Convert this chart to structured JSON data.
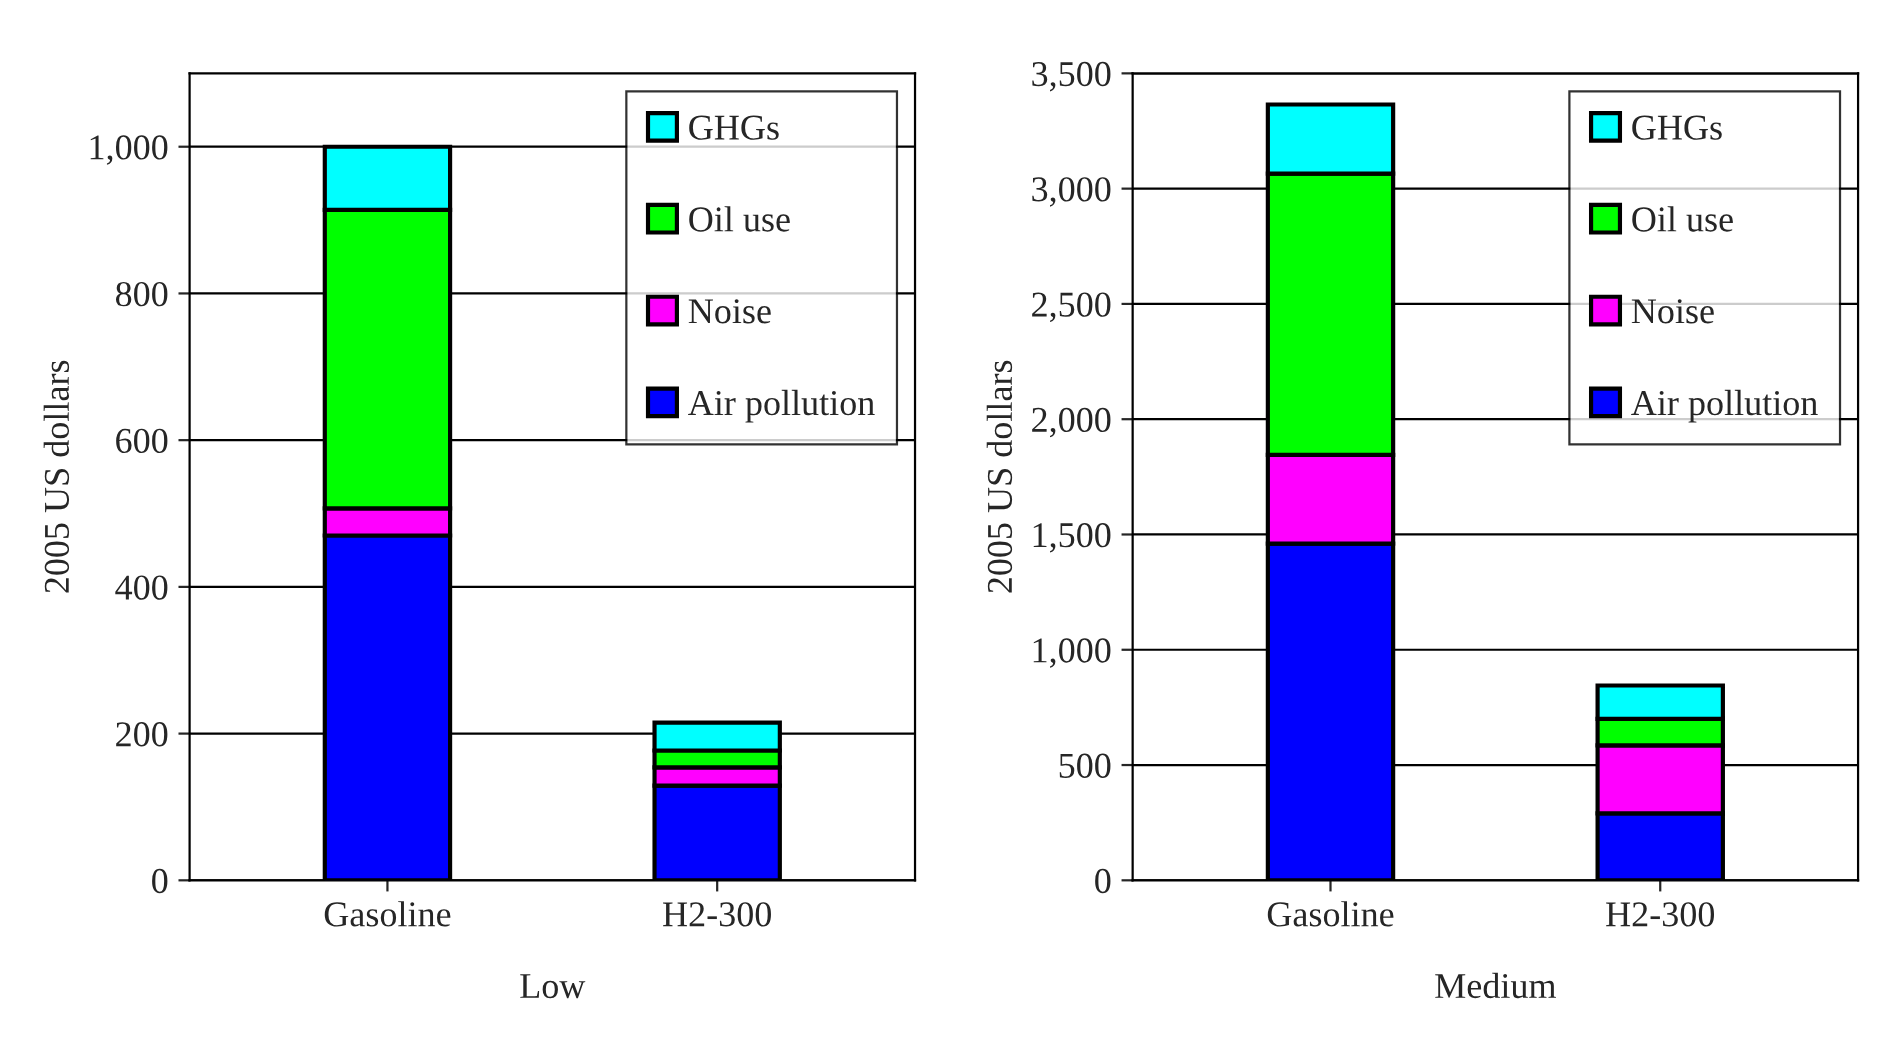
{
  "chart_data": [
    {
      "type": "bar",
      "stacked": true,
      "xlabel": "Low",
      "ylabel": "2005 US dollars",
      "categories": [
        "Gasoline",
        "H2-300"
      ],
      "ylim": [
        0,
        1100
      ],
      "yticks": [
        0,
        200,
        400,
        600,
        800,
        {
          "value": 1000,
          "label": "1,000"
        }
      ],
      "grid": "y",
      "legend": "top right",
      "series": [
        {
          "name": "Air pollution",
          "color": "#0000ff",
          "values": [
            470,
            129
          ]
        },
        {
          "name": "Noise",
          "color": "#ff00ff",
          "values": [
            37,
            25
          ]
        },
        {
          "name": "Oil use",
          "color": "#00ff00",
          "values": [
            407,
            23
          ]
        },
        {
          "name": "GHGs",
          "color": "#00ffff",
          "values": [
            86,
            38
          ]
        }
      ]
    },
    {
      "type": "bar",
      "stacked": true,
      "xlabel": "Medium",
      "ylabel": "2005 US dollars",
      "categories": [
        "Gasoline",
        "H2-300"
      ],
      "ylim": [
        0,
        3500
      ],
      "yticks": [
        0,
        500,
        {
          "value": 1000,
          "label": "1,000"
        },
        {
          "value": 1500,
          "label": "1,500"
        },
        {
          "value": 2000,
          "label": "2,000"
        },
        {
          "value": 2500,
          "label": "2,500"
        },
        {
          "value": 3000,
          "label": "3,000"
        },
        {
          "value": 3500,
          "label": "3,500"
        }
      ],
      "grid": "y",
      "legend": "top right",
      "series": [
        {
          "name": "Air pollution",
          "color": "#0000ff",
          "values": [
            1460,
            290
          ]
        },
        {
          "name": "Noise",
          "color": "#ff00ff",
          "values": [
            385,
            295
          ]
        },
        {
          "name": "Oil use",
          "color": "#00ff00",
          "values": [
            1220,
            115
          ]
        },
        {
          "name": "GHGs",
          "color": "#00ffff",
          "values": [
            300,
            145
          ]
        }
      ]
    }
  ]
}
